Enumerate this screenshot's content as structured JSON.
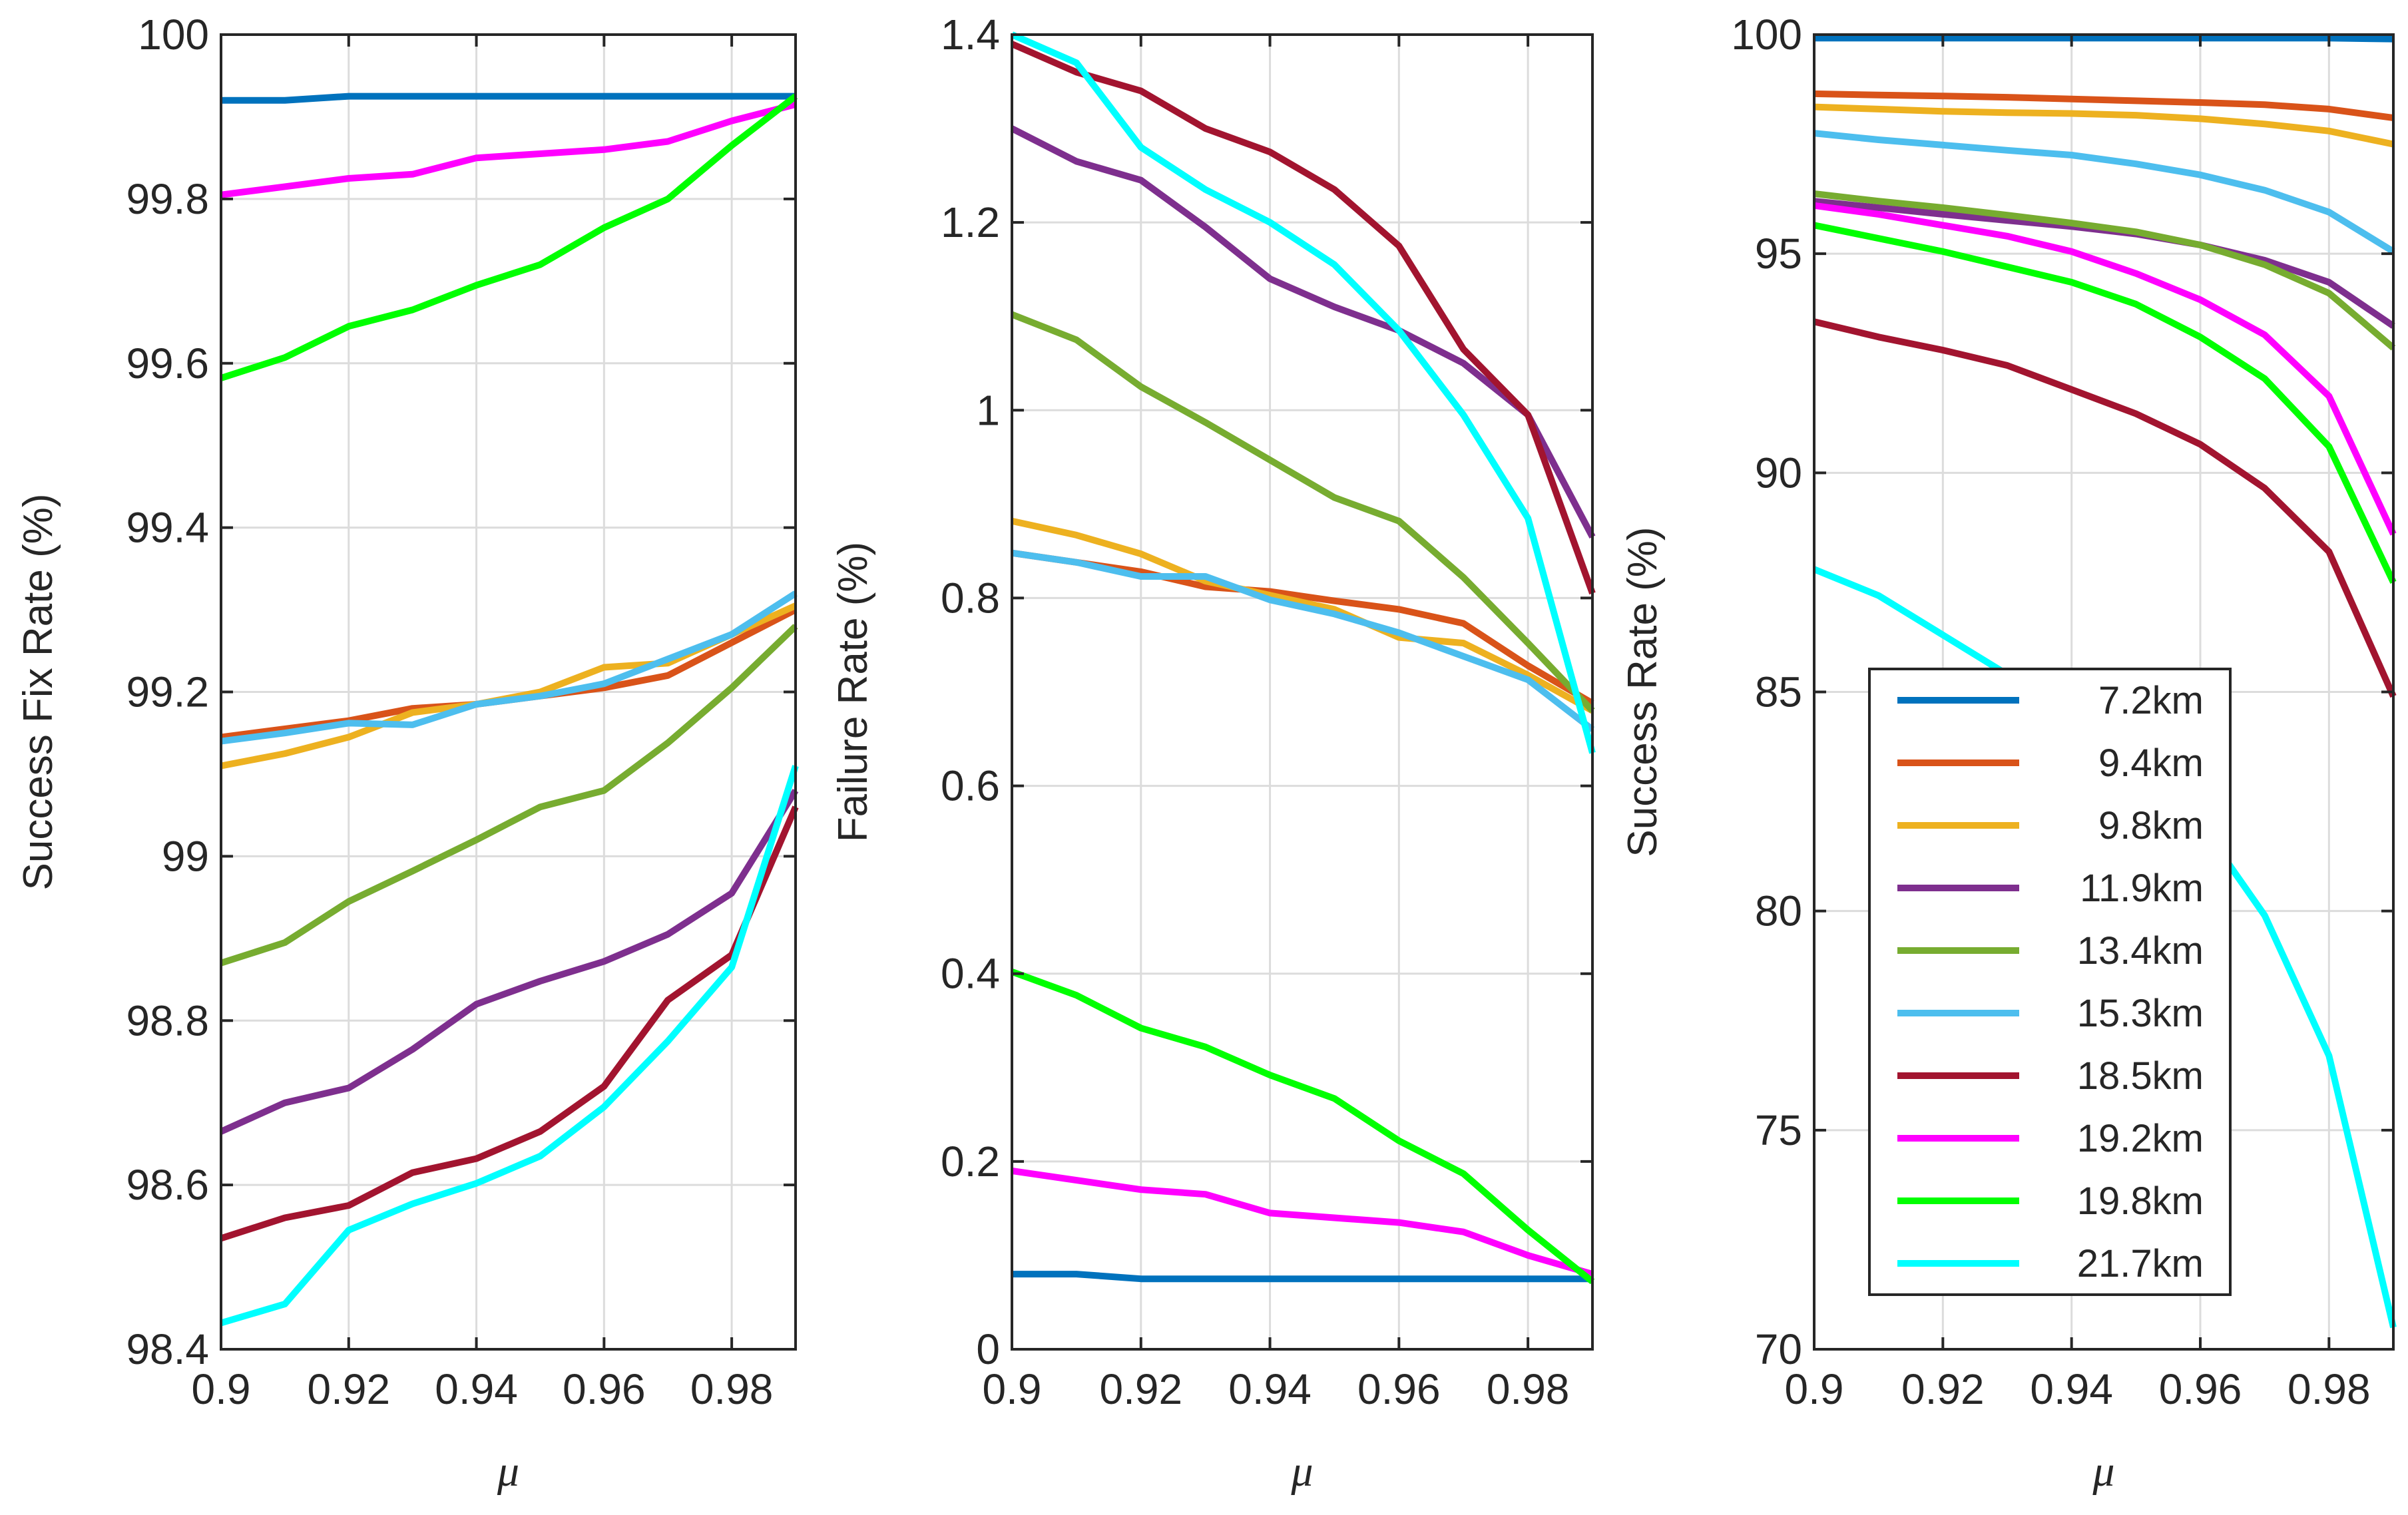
{
  "figure": {
    "series_names": [
      "7.2km",
      "9.4km",
      "9.8km",
      "11.9km",
      "13.4km",
      "15.3km",
      "18.5km",
      "19.2km",
      "19.8km",
      "21.7km"
    ],
    "series_colors": [
      "#0072BD",
      "#D95319",
      "#EDB120",
      "#7E2F8E",
      "#77AC30",
      "#4DBEEE",
      "#A2142F",
      "#FF00FF",
      "#00FF00",
      "#00FFFF"
    ]
  },
  "chart_data": [
    {
      "type": "line",
      "title": "",
      "xlabel": "μ",
      "ylabel": "Success Fix Rate (%)",
      "xlim": [
        0.9,
        0.99
      ],
      "ylim": [
        98.4,
        100
      ],
      "x": [
        0.9,
        0.91,
        0.92,
        0.93,
        0.94,
        0.95,
        0.96,
        0.97,
        0.98,
        0.99
      ],
      "xticks": [
        0.9,
        0.92,
        0.94,
        0.96,
        0.98
      ],
      "xtick_labels": [
        "0.9",
        "0.92",
        "0.94",
        "0.96",
        "0.98"
      ],
      "yticks": [
        98.4,
        98.6,
        98.8,
        99,
        99.2,
        99.4,
        99.6,
        99.8,
        100
      ],
      "ytick_labels": [
        "98.4",
        "98.6",
        "98.8",
        "99",
        "99.2",
        "99.4",
        "99.6",
        "99.8",
        "100"
      ],
      "grid": true,
      "series": [
        {
          "name": "7.2km",
          "values": [
            99.92,
            99.92,
            99.925,
            99.925,
            99.925,
            99.925,
            99.925,
            99.925,
            99.925,
            99.925
          ]
        },
        {
          "name": "9.4km",
          "values": [
            99.145,
            99.155,
            99.165,
            99.18,
            99.185,
            99.195,
            99.205,
            99.22,
            99.26,
            99.3
          ]
        },
        {
          "name": "9.8km",
          "values": [
            99.11,
            99.125,
            99.145,
            99.175,
            99.185,
            99.2,
            99.23,
            99.235,
            99.27,
            99.305
          ]
        },
        {
          "name": "11.9km",
          "values": [
            98.665,
            98.7,
            98.718,
            98.765,
            98.82,
            98.848,
            98.872,
            98.905,
            98.955,
            99.08
          ]
        },
        {
          "name": "13.4km",
          "values": [
            98.87,
            98.895,
            98.945,
            98.982,
            99.02,
            99.06,
            99.08,
            99.138,
            99.205,
            99.28
          ]
        },
        {
          "name": "15.3km",
          "values": [
            99.14,
            99.15,
            99.162,
            99.16,
            99.185,
            99.195,
            99.21,
            99.24,
            99.27,
            99.32
          ]
        },
        {
          "name": "18.5km",
          "values": [
            98.535,
            98.56,
            98.575,
            98.615,
            98.632,
            98.665,
            98.72,
            98.825,
            98.88,
            99.06
          ]
        },
        {
          "name": "19.2km",
          "values": [
            99.805,
            99.815,
            99.825,
            99.83,
            99.85,
            99.855,
            99.86,
            99.87,
            99.895,
            99.915
          ]
        },
        {
          "name": "19.8km",
          "values": [
            99.582,
            99.607,
            99.645,
            99.665,
            99.695,
            99.72,
            99.765,
            99.8,
            99.865,
            99.925
          ]
        },
        {
          "name": "21.7km",
          "values": [
            98.432,
            98.455,
            98.545,
            98.577,
            98.602,
            98.635,
            98.695,
            98.775,
            98.865,
            99.11
          ]
        }
      ]
    },
    {
      "type": "line",
      "title": "",
      "xlabel": "μ",
      "ylabel": "Failure Rate (%)",
      "xlim": [
        0.9,
        0.99
      ],
      "ylim": [
        0,
        1.4
      ],
      "x": [
        0.9,
        0.91,
        0.92,
        0.93,
        0.94,
        0.95,
        0.96,
        0.97,
        0.98,
        0.99
      ],
      "xticks": [
        0.9,
        0.92,
        0.94,
        0.96,
        0.98
      ],
      "xtick_labels": [
        "0.9",
        "0.92",
        "0.94",
        "0.96",
        "0.98"
      ],
      "yticks": [
        0,
        0.2,
        0.4,
        0.6,
        0.8,
        1,
        1.2,
        1.4
      ],
      "ytick_labels": [
        "0",
        "0.2",
        "0.4",
        "0.6",
        "0.8",
        "1",
        "1.2",
        "1.4"
      ],
      "grid": true,
      "series": [
        {
          "name": "7.2km",
          "values": [
            0.08,
            0.08,
            0.075,
            0.075,
            0.075,
            0.075,
            0.075,
            0.075,
            0.075,
            0.075
          ]
        },
        {
          "name": "9.4km",
          "values": [
            0.848,
            0.838,
            0.828,
            0.812,
            0.807,
            0.797,
            0.788,
            0.773,
            0.728,
            0.688
          ]
        },
        {
          "name": "9.8km",
          "values": [
            0.882,
            0.867,
            0.847,
            0.818,
            0.803,
            0.788,
            0.758,
            0.752,
            0.718,
            0.68
          ]
        },
        {
          "name": "11.9km",
          "values": [
            1.3,
            1.265,
            1.245,
            1.195,
            1.14,
            1.11,
            1.085,
            1.05,
            0.995,
            0.865
          ]
        },
        {
          "name": "13.4km",
          "values": [
            1.102,
            1.075,
            1.025,
            0.987,
            0.947,
            0.907,
            0.882,
            0.822,
            0.752,
            0.68
          ]
        },
        {
          "name": "15.3km",
          "values": [
            0.848,
            0.838,
            0.823,
            0.823,
            0.798,
            0.783,
            0.763,
            0.738,
            0.713,
            0.66
          ]
        },
        {
          "name": "18.5km",
          "values": [
            1.39,
            1.36,
            1.34,
            1.3,
            1.275,
            1.235,
            1.175,
            1.065,
            0.995,
            0.805
          ]
        },
        {
          "name": "19.2km",
          "values": [
            0.19,
            0.18,
            0.17,
            0.165,
            0.145,
            0.14,
            0.135,
            0.125,
            0.1,
            0.08
          ]
        },
        {
          "name": "19.8km",
          "values": [
            0.402,
            0.377,
            0.342,
            0.322,
            0.292,
            0.267,
            0.222,
            0.187,
            0.127,
            0.072
          ]
        },
        {
          "name": "21.7km",
          "values": [
            1.4,
            1.37,
            1.28,
            1.235,
            1.2,
            1.155,
            1.085,
            0.995,
            0.885,
            0.635
          ]
        }
      ]
    },
    {
      "type": "line",
      "title": "",
      "xlabel": "μ",
      "ylabel": "Success Rate (%)",
      "xlim": [
        0.9,
        0.99
      ],
      "ylim": [
        70,
        100
      ],
      "x": [
        0.9,
        0.91,
        0.92,
        0.93,
        0.94,
        0.95,
        0.96,
        0.97,
        0.98,
        0.99
      ],
      "xticks": [
        0.9,
        0.92,
        0.94,
        0.96,
        0.98
      ],
      "xtick_labels": [
        "0.9",
        "0.92",
        "0.94",
        "0.96",
        "0.98"
      ],
      "yticks": [
        70,
        75,
        80,
        85,
        90,
        95,
        100
      ],
      "ytick_labels": [
        "70",
        "75",
        "80",
        "85",
        "90",
        "95",
        "100"
      ],
      "grid": true,
      "legend": {
        "position": "lower-right",
        "entries": [
          "7.2km",
          "9.4km",
          "9.8km",
          "11.9km",
          "13.4km",
          "15.3km",
          "18.5km",
          "19.2km",
          "19.8km",
          "21.7km"
        ]
      },
      "series": [
        {
          "name": "7.2km",
          "values": [
            99.92,
            99.92,
            99.92,
            99.92,
            99.92,
            99.92,
            99.92,
            99.92,
            99.92,
            99.9
          ]
        },
        {
          "name": "9.4km",
          "values": [
            98.65,
            98.62,
            98.6,
            98.57,
            98.53,
            98.49,
            98.45,
            98.4,
            98.3,
            98.1
          ]
        },
        {
          "name": "9.8km",
          "values": [
            98.35,
            98.3,
            98.25,
            98.22,
            98.2,
            98.16,
            98.08,
            97.96,
            97.8,
            97.5
          ]
        },
        {
          "name": "11.9km",
          "values": [
            96.2,
            96.05,
            95.9,
            95.76,
            95.62,
            95.45,
            95.2,
            94.85,
            94.35,
            93.35
          ]
        },
        {
          "name": "13.4km",
          "values": [
            96.37,
            96.2,
            96.05,
            95.88,
            95.7,
            95.5,
            95.2,
            94.75,
            94.1,
            92.85
          ]
        },
        {
          "name": "15.3km",
          "values": [
            97.75,
            97.6,
            97.48,
            97.36,
            97.25,
            97.05,
            96.8,
            96.45,
            95.95,
            95.05
          ]
        },
        {
          "name": "18.5km",
          "values": [
            93.45,
            93.1,
            92.8,
            92.45,
            91.9,
            91.35,
            90.65,
            89.65,
            88.2,
            84.9
          ]
        },
        {
          "name": "19.2km",
          "values": [
            96.1,
            95.9,
            95.65,
            95.4,
            95.05,
            94.55,
            93.95,
            93.15,
            91.75,
            88.6
          ]
        },
        {
          "name": "19.8km",
          "values": [
            95.65,
            95.35,
            95.05,
            94.7,
            94.35,
            93.85,
            93.1,
            92.15,
            90.6,
            87.5
          ]
        },
        {
          "name": "21.7km",
          "values": [
            87.8,
            87.2,
            86.3,
            85.4,
            84.4,
            83.4,
            82.0,
            79.9,
            76.7,
            70.5
          ]
        }
      ]
    }
  ]
}
